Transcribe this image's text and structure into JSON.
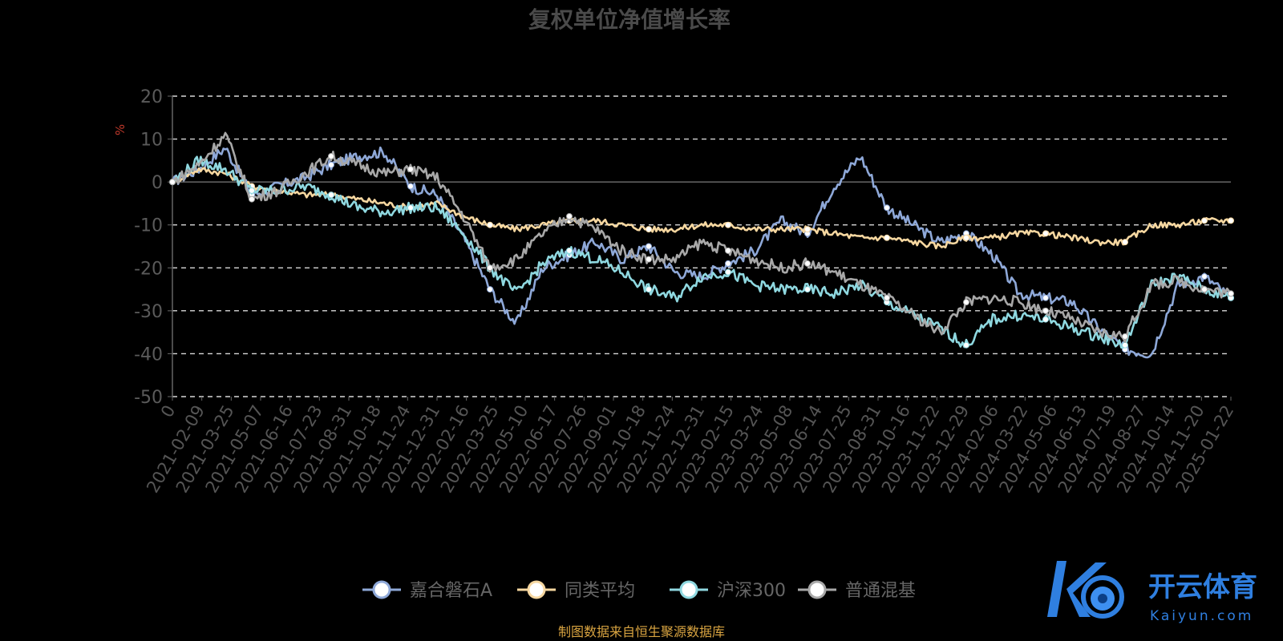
{
  "chart_data": {
    "type": "line",
    "title": "复权单位净值增长率",
    "ylabel": "%",
    "ylim": [
      -50,
      20
    ],
    "yticks": [
      20,
      10,
      0,
      -10,
      -20,
      -30,
      -40,
      -50
    ],
    "grid": true,
    "legend_position": "bottom-center",
    "xticks": [
      "0",
      "2021-02-09",
      "2021-03-25",
      "2021-05-07",
      "2021-06-16",
      "2021-07-23",
      "2021-08-31",
      "2021-10-18",
      "2021-11-24",
      "2021-12-31",
      "2022-02-16",
      "2022-03-25",
      "2022-05-10",
      "2022-06-17",
      "2022-07-26",
      "2022-09-01",
      "2022-10-18",
      "2022-11-24",
      "2022-12-31",
      "2023-02-15",
      "2023-03-24",
      "2023-05-08",
      "2023-06-14",
      "2023-07-25",
      "2023-08-31",
      "2023-10-16",
      "2023-11-22",
      "2023-12-29",
      "2024-02-06",
      "2024-03-22",
      "2024-05-06",
      "2024-06-13",
      "2024-07-19",
      "2024-08-27",
      "2024-10-14",
      "2024-11-20",
      "2025-01-22"
    ],
    "series": [
      {
        "name": "嘉合磐石A",
        "color": "#8ea8d8",
        "values": [
          0,
          3,
          8,
          -3,
          -1,
          1,
          4,
          6,
          7,
          -1,
          -3,
          -13,
          -25,
          -33,
          -20,
          -17,
          -14,
          -18,
          -15,
          -21,
          -22,
          -19,
          -16,
          -9,
          -12,
          -1,
          6,
          -6,
          -10,
          -14,
          -12,
          -17,
          -26,
          -27,
          -28,
          -34,
          -39,
          -40,
          -24,
          -22,
          -27
        ]
      },
      {
        "name": "同类平均",
        "color": "#f6d7a0",
        "values": [
          0,
          3,
          2,
          -1,
          -2,
          -3,
          -3,
          -4,
          -5,
          -6,
          -5,
          -8,
          -10,
          -11,
          -10,
          -9,
          -9,
          -10,
          -11,
          -11,
          -10,
          -10,
          -11,
          -11,
          -11,
          -12,
          -13,
          -13,
          -14,
          -15,
          -13,
          -13,
          -12,
          -12,
          -13,
          -14,
          -14,
          -10,
          -10,
          -9,
          -9
        ]
      },
      {
        "name": "沪深300",
        "color": "#8fd8e0",
        "values": [
          0,
          5,
          3,
          -2,
          -2,
          -1,
          -3,
          -6,
          -7,
          -6,
          -6,
          -12,
          -20,
          -26,
          -19,
          -16,
          -18,
          -21,
          -25,
          -27,
          -22,
          -21,
          -24,
          -25,
          -25,
          -26,
          -24,
          -28,
          -31,
          -34,
          -38,
          -32,
          -31,
          -32,
          -34,
          -36,
          -38,
          -24,
          -22,
          -25,
          -27
        ]
      },
      {
        "name": "普通混基",
        "color": "#a8a8a8",
        "values": [
          0,
          4,
          11,
          -4,
          -2,
          2,
          6,
          4,
          2,
          3,
          1,
          -8,
          -20,
          -18,
          -12,
          -8,
          -11,
          -16,
          -18,
          -18,
          -14,
          -16,
          -18,
          -20,
          -19,
          -21,
          -24,
          -27,
          -31,
          -35,
          -28,
          -27,
          -28,
          -30,
          -32,
          -35,
          -36,
          -24,
          -23,
          -25,
          -26
        ]
      }
    ]
  },
  "source_note": "制图数据来自恒生聚源数据库",
  "watermark": {
    "title": "开云体育",
    "sub": "Kaiyun.com"
  }
}
